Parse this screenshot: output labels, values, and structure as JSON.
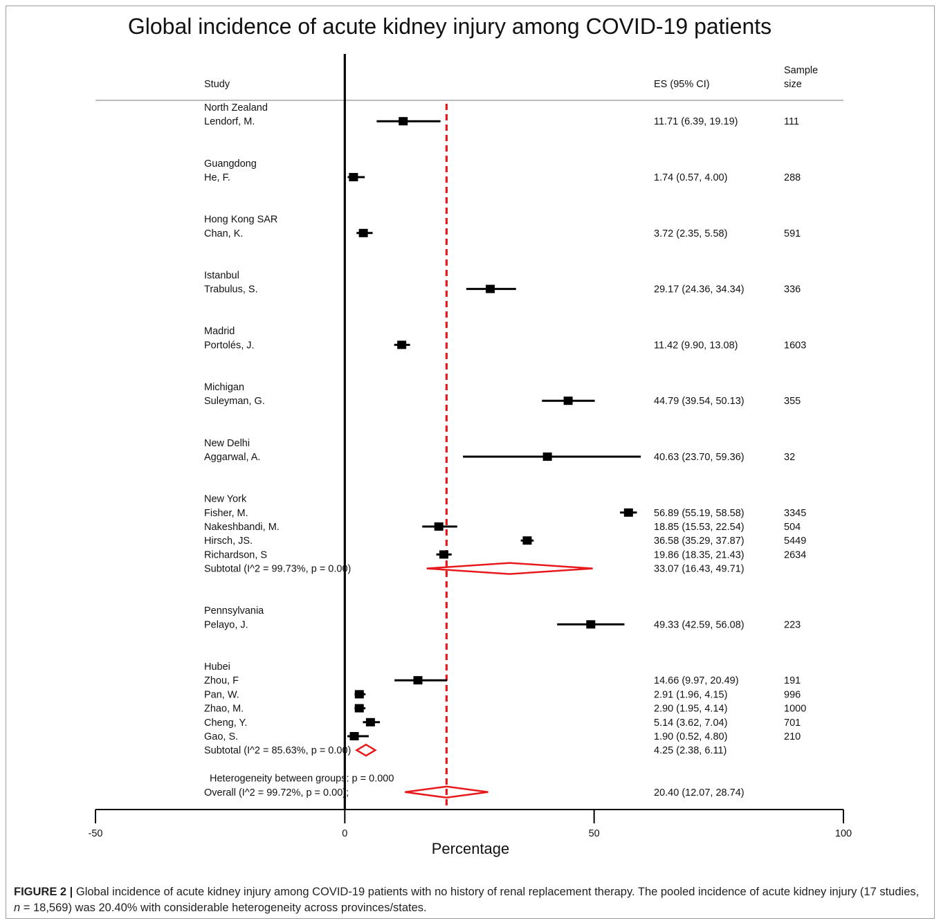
{
  "chart_data": {
    "type": "forest",
    "title": "Global incidence of acute kidney injury among COVID-19 patients",
    "xlabel": "Percentage",
    "xlim": [
      -50,
      100
    ],
    "xticks": [
      -50,
      0,
      50,
      100
    ],
    "null_line": 0,
    "overall_line": 20.4,
    "headers": {
      "study": "Study",
      "es": "ES (95% CI)",
      "n": [
        "Sample",
        "size"
      ]
    },
    "groups": [
      {
        "name": "North Zealand",
        "studies": [
          {
            "label": "Lendorf, M.",
            "es": 11.71,
            "lo": 6.39,
            "hi": 19.19,
            "es_text": "11.71 (6.39, 19.19)",
            "n": "111"
          }
        ]
      },
      {
        "name": "Guangdong",
        "studies": [
          {
            "label": "He, F.",
            "es": 1.74,
            "lo": 0.57,
            "hi": 4.0,
            "es_text": "1.74 (0.57, 4.00)",
            "n": "288"
          }
        ]
      },
      {
        "name": "Hong Kong SAR",
        "studies": [
          {
            "label": "Chan, K.",
            "es": 3.72,
            "lo": 2.35,
            "hi": 5.58,
            "es_text": "3.72 (2.35, 5.58)",
            "n": "591"
          }
        ]
      },
      {
        "name": "Istanbul",
        "studies": [
          {
            "label": "Trabulus, S.",
            "es": 29.17,
            "lo": 24.36,
            "hi": 34.34,
            "es_text": "29.17 (24.36, 34.34)",
            "n": "336"
          }
        ]
      },
      {
        "name": "Madrid",
        "studies": [
          {
            "label": "Portolés, J.",
            "es": 11.42,
            "lo": 9.9,
            "hi": 13.08,
            "es_text": "11.42 (9.90, 13.08)",
            "n": "1603"
          }
        ]
      },
      {
        "name": "Michigan",
        "studies": [
          {
            "label": "Suleyman, G.",
            "es": 44.79,
            "lo": 39.54,
            "hi": 50.13,
            "es_text": "44.79 (39.54, 50.13)",
            "n": "355"
          }
        ]
      },
      {
        "name": "New Delhi",
        "studies": [
          {
            "label": "Aggarwal, A.",
            "es": 40.63,
            "lo": 23.7,
            "hi": 59.36,
            "es_text": "40.63 (23.70, 59.36)",
            "n": "32"
          }
        ]
      },
      {
        "name": "New York",
        "studies": [
          {
            "label": "Fisher, M.",
            "es": 56.89,
            "lo": 55.19,
            "hi": 58.58,
            "es_text": "56.89 (55.19, 58.58)",
            "n": "3345"
          },
          {
            "label": "Nakeshbandi, M.",
            "es": 18.85,
            "lo": 15.53,
            "hi": 22.54,
            "es_text": "18.85 (15.53, 22.54)",
            "n": "504"
          },
          {
            "label": "Hirsch, JS.",
            "es": 36.58,
            "lo": 35.29,
            "hi": 37.87,
            "es_text": "36.58 (35.29, 37.87)",
            "n": "5449"
          },
          {
            "label": "Richardson, S",
            "es": 19.86,
            "lo": 18.35,
            "hi": 21.43,
            "es_text": "19.86 (18.35, 21.43)",
            "n": "2634"
          }
        ],
        "subtotal": {
          "label": "Subtotal  (I^2 = 99.73%, p = 0.00)",
          "es": 33.07,
          "lo": 16.43,
          "hi": 49.71,
          "es_text": "33.07 (16.43, 49.71)"
        }
      },
      {
        "name": "Pennsylvania",
        "studies": [
          {
            "label": "Pelayo, J.",
            "es": 49.33,
            "lo": 42.59,
            "hi": 56.08,
            "es_text": "49.33 (42.59, 56.08)",
            "n": "223"
          }
        ]
      },
      {
        "name": "Hubei",
        "studies": [
          {
            "label": "Zhou, F",
            "es": 14.66,
            "lo": 9.97,
            "hi": 20.49,
            "es_text": "14.66 (9.97, 20.49)",
            "n": "191"
          },
          {
            "label": "Pan, W.",
            "es": 2.91,
            "lo": 1.96,
            "hi": 4.15,
            "es_text": "2.91 (1.96, 4.15)",
            "n": "996"
          },
          {
            "label": "Zhao, M.",
            "es": 2.9,
            "lo": 1.95,
            "hi": 4.14,
            "es_text": "2.90 (1.95, 4.14)",
            "n": "1000"
          },
          {
            "label": "Cheng, Y.",
            "es": 5.14,
            "lo": 3.62,
            "hi": 7.04,
            "es_text": "5.14 (3.62, 7.04)",
            "n": "701"
          },
          {
            "label": "Gao, S.",
            "es": 1.9,
            "lo": 0.52,
            "hi": 4.8,
            "es_text": "1.90 (0.52, 4.80)",
            "n": "210"
          }
        ],
        "subtotal": {
          "label": "Subtotal  (I^2 = 85.63%, p = 0.00)",
          "es": 4.25,
          "lo": 2.38,
          "hi": 6.11,
          "es_text": "4.25 (2.38, 6.11)"
        }
      }
    ],
    "heterogeneity": "Heterogeneity between groups: p = 0.000",
    "overall": {
      "label": "Overall  (I^2 = 99.72%, p = 0.00);",
      "es": 20.4,
      "lo": 12.07,
      "hi": 28.74,
      "es_text": "20.40 (12.07, 28.74)"
    },
    "colors": {
      "line": "#000000",
      "marker": "#000000",
      "diamond": "#e8191d",
      "reference": "#e8191d",
      "separator": "#bbbbbb"
    }
  },
  "caption": {
    "figure_label": "FIGURE 2 |",
    "text_1": " Global incidence of acute kidney injury among COVID-19 patients with no history of renal replacement therapy. The pooled incidence of acute kidney injury (17 studies, ",
    "n_symbol": "n",
    "text_2": " = 18,569) was 20.40% with considerable heterogeneity across provinces/states."
  }
}
